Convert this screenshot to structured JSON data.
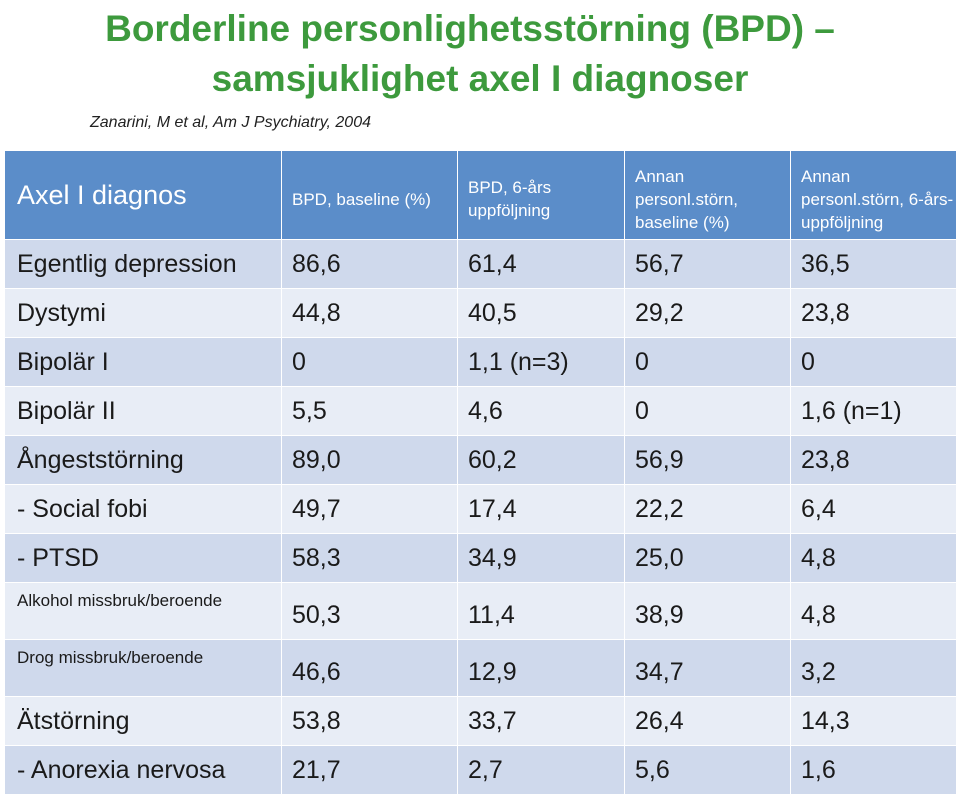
{
  "slide": {
    "title_line1": "Borderline personlighetsstörning (BPD) –",
    "title_line2": "samsjuklighet axel I diagnoser",
    "citation": "Zanarini, M et al, Am J Psychiatry, 2004"
  },
  "table": {
    "headers": [
      "Axel I diagnos",
      "BPD, baseline (%)",
      "BPD, 6-års uppföljning",
      "Annan personl.störn, baseline (%)",
      "Annan personl.störn, 6-års-uppföljning"
    ],
    "rows": [
      {
        "label": "Egentlig depression",
        "values": [
          "86,6",
          "61,4",
          "56,7",
          "36,5"
        ]
      },
      {
        "label": "Dystymi",
        "values": [
          "44,8",
          "40,5",
          "29,2",
          "23,8"
        ]
      },
      {
        "label": "Bipolär I",
        "values": [
          "0",
          "1,1 (n=3)",
          "0",
          "0"
        ]
      },
      {
        "label": "Bipolär II",
        "values": [
          "5,5",
          "4,6",
          "0",
          "1,6 (n=1)"
        ]
      },
      {
        "label": "Ångeststörning",
        "values": [
          "89,0",
          "60,2",
          "56,9",
          "23,8"
        ]
      },
      {
        "label": "- Social fobi",
        "values": [
          "49,7",
          "17,4",
          "22,2",
          "6,4"
        ]
      },
      {
        "label": "- PTSD",
        "values": [
          "58,3",
          "34,9",
          "25,0",
          "4,8"
        ]
      },
      {
        "label": "Alkohol missbruk/beroende",
        "values": [
          "50,3",
          "11,4",
          "38,9",
          "4,8"
        ]
      },
      {
        "label": "Drog missbruk/beroende",
        "values": [
          "46,6",
          "12,9",
          "34,7",
          "3,2"
        ]
      },
      {
        "label": "Ätstörning",
        "values": [
          "53,8",
          "33,7",
          "26,4",
          "14,3"
        ]
      },
      {
        "label": "- Anorexia nervosa",
        "values": [
          "21,7",
          "2,7",
          "5,6",
          "1,6"
        ]
      }
    ]
  }
}
